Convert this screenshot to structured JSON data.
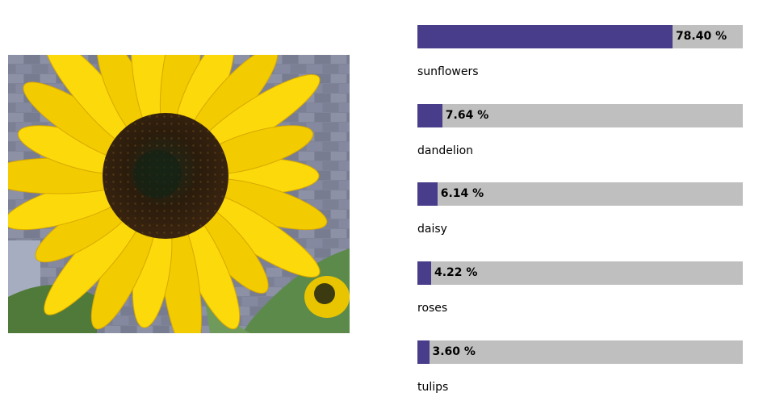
{
  "chart_data": {
    "type": "bar",
    "orientation": "horizontal",
    "categories": [
      "sunflowers",
      "dandelion",
      "daisy",
      "roses",
      "tulips"
    ],
    "values": [
      78.4,
      7.64,
      6.14,
      4.22,
      3.6
    ],
    "value_labels": [
      "78.40 %",
      "7.64 %",
      "6.14 %",
      "4.22 %",
      "3.60 %"
    ],
    "xlim": [
      0,
      100
    ],
    "title": "",
    "xlabel": "",
    "ylabel": "",
    "grid": false,
    "legend": "none",
    "colors": {
      "fill": "#483d8b",
      "track": "#bfbfbf"
    }
  },
  "image": {
    "subject": "sunflower-icon"
  }
}
